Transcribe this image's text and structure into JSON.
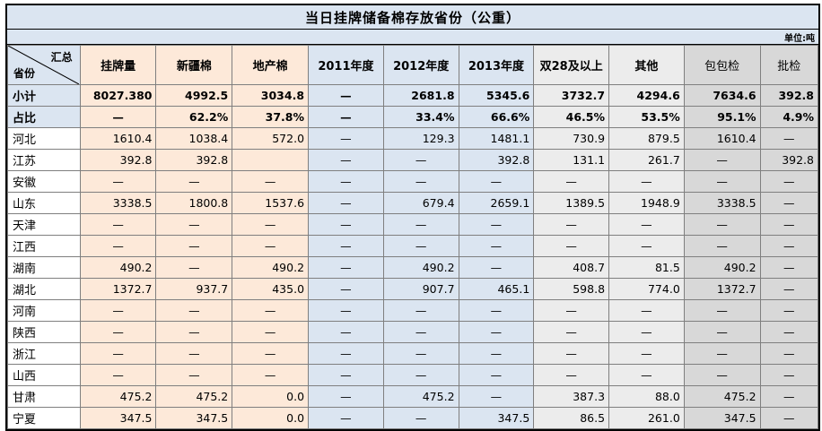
{
  "title": "当日挂牌储备棉存放省份（公重）",
  "unit": "单位:吨",
  "corner": {
    "top": "汇总",
    "bottom": "省份"
  },
  "headers": [
    "挂牌量",
    "新疆棉",
    "地产棉",
    "2011年度",
    "2012年度",
    "2013年度",
    "双28及以上",
    "其他",
    "包包检",
    "批检"
  ],
  "rows": [
    {
      "province": "小计",
      "cells": [
        "8027.380",
        "4992.5",
        "3034.8",
        "—",
        "2681.8",
        "5345.6",
        "3732.7",
        "4294.6",
        "7634.6",
        "392.8"
      ]
    },
    {
      "province": "占比",
      "cells": [
        "—",
        "62.2%",
        "37.8%",
        "—",
        "33.4%",
        "66.6%",
        "46.5%",
        "53.5%",
        "95.1%",
        "4.9%"
      ]
    },
    {
      "province": "河北",
      "cells": [
        "1610.4",
        "1038.4",
        "572.0",
        "—",
        "129.3",
        "1481.1",
        "730.9",
        "879.5",
        "1610.4",
        "—"
      ]
    },
    {
      "province": "江苏",
      "cells": [
        "392.8",
        "392.8",
        "",
        "—",
        "—",
        "392.8",
        "131.1",
        "261.7",
        "—",
        "392.8"
      ]
    },
    {
      "province": "安徽",
      "cells": [
        "—",
        "—",
        "—",
        "—",
        "—",
        "—",
        "—",
        "—",
        "—",
        "—"
      ]
    },
    {
      "province": "山东",
      "cells": [
        "3338.5",
        "1800.8",
        "1537.6",
        "—",
        "679.4",
        "2659.1",
        "1389.5",
        "1948.9",
        "3338.5",
        "—"
      ]
    },
    {
      "province": "天津",
      "cells": [
        "—",
        "—",
        "—",
        "—",
        "—",
        "—",
        "—",
        "—",
        "—",
        "—"
      ]
    },
    {
      "province": "江西",
      "cells": [
        "—",
        "—",
        "—",
        "—",
        "—",
        "—",
        "—",
        "—",
        "—",
        "—"
      ]
    },
    {
      "province": "湖南",
      "cells": [
        "490.2",
        "—",
        "490.2",
        "—",
        "490.2",
        "—",
        "408.7",
        "81.5",
        "490.2",
        "—"
      ]
    },
    {
      "province": "湖北",
      "cells": [
        "1372.7",
        "937.7",
        "435.0",
        "—",
        "907.7",
        "465.1",
        "598.8",
        "774.0",
        "1372.7",
        "—"
      ]
    },
    {
      "province": "河南",
      "cells": [
        "—",
        "—",
        "—",
        "—",
        "—",
        "—",
        "—",
        "—",
        "—",
        "—"
      ]
    },
    {
      "province": "陕西",
      "cells": [
        "—",
        "—",
        "—",
        "—",
        "—",
        "—",
        "—",
        "—",
        "—",
        "—"
      ]
    },
    {
      "province": "浙江",
      "cells": [
        "—",
        "—",
        "—",
        "—",
        "—",
        "—",
        "—",
        "—",
        "—",
        "—"
      ]
    },
    {
      "province": "山西",
      "cells": [
        "—",
        "—",
        "—",
        "—",
        "—",
        "—",
        "—",
        "—",
        "—",
        "—"
      ]
    },
    {
      "province": "甘肃",
      "cells": [
        "475.2",
        "475.2",
        "0.0",
        "—",
        "475.2",
        "—",
        "387.3",
        "88.0",
        "475.2",
        "—"
      ]
    },
    {
      "province": "宁夏",
      "cells": [
        "347.5",
        "347.5",
        "0.0",
        "—",
        "—",
        "347.5",
        "86.5",
        "261.0",
        "347.5",
        "—"
      ]
    }
  ],
  "colors": {
    "peach": "#fde9d9",
    "blue": "#dbe5f1",
    "light": "#ececec",
    "gray": "#d8d8d8"
  }
}
